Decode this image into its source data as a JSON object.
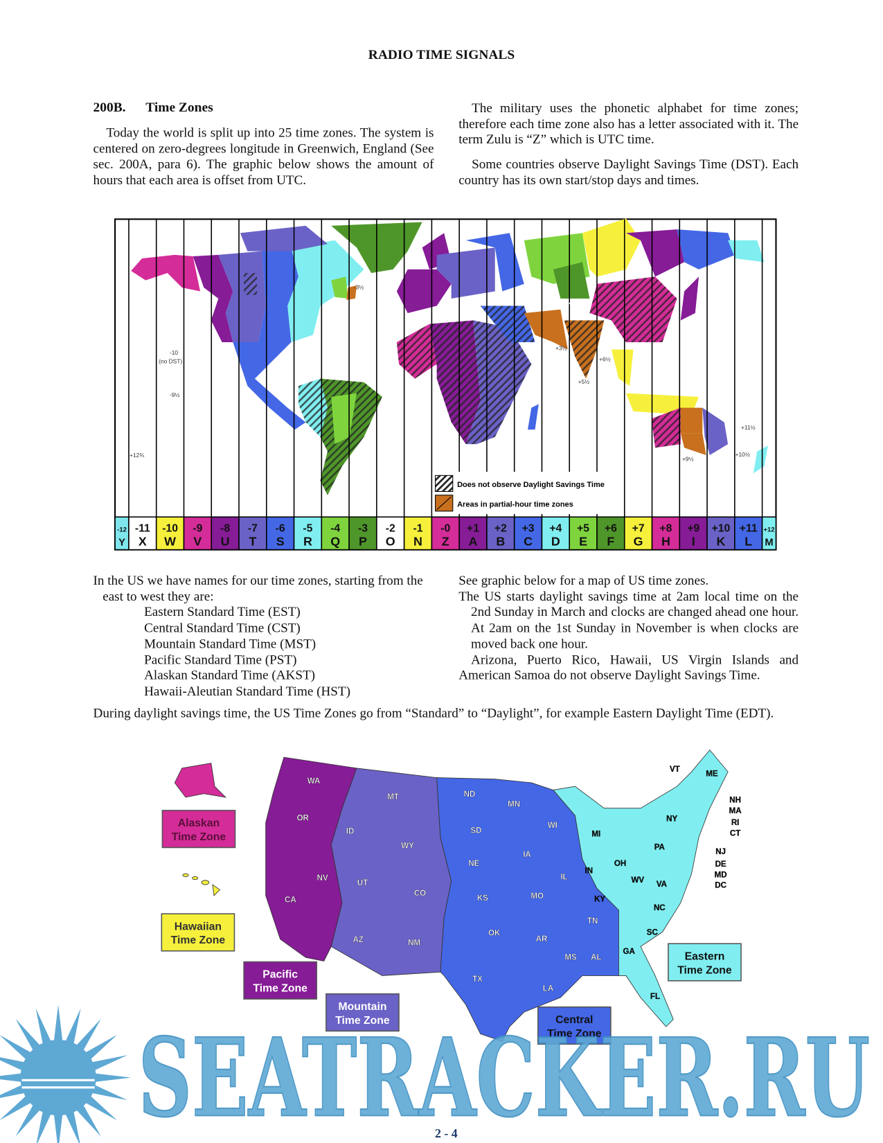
{
  "header": {
    "title": "RADIO TIME SIGNALS"
  },
  "section": {
    "number": "200B.",
    "title": "Time Zones"
  },
  "left_col_1": {
    "paragraph": "Today the world is split up into 25 time zones. The system is centered on zero-degrees longitude in Greenwich, England (See sec. 200A, para 6). The graphic below shows the amount of hours that each area is offset from UTC."
  },
  "right_col_1": {
    "paragraphs": [
      "The military uses the phonetic alphabet for time zones; therefore each time zone also has a letter associated with it. The term Zulu is “Z” which is UTC time.",
      "Some countries observe Daylight Savings Time (DST). Each country has its own start/stop days and times."
    ]
  },
  "world_map": {
    "legend": {
      "no_dst": "Does not observe Daylight Savings Time",
      "partial_hour": "Areas in partial-hour time zones"
    },
    "annotations": {
      "nfld": "-3½",
      "hawaii": "-10",
      "hawaii_note": "(no DST)",
      "marquesas": "-9½",
      "chatham": "+12¾",
      "afghanistan": "+4.5",
      "iran": "+3½",
      "myanmar": "+6½",
      "india": "+5½",
      "australia_central": "+9½",
      "norfolk": "+11½",
      "lord_howe": "+10½"
    },
    "zones": [
      {
        "offset": "-12",
        "letter": "Y",
        "color": "#7fe6ec"
      },
      {
        "offset": "-11",
        "letter": "X",
        "color": "#ffffff"
      },
      {
        "offset": "-10",
        "letter": "W",
        "color": "#f6f03c"
      },
      {
        "offset": "-9",
        "letter": "V",
        "color": "#d42c98"
      },
      {
        "offset": "-8",
        "letter": "U",
        "color": "#861c96"
      },
      {
        "offset": "-7",
        "letter": "T",
        "color": "#6a62c6"
      },
      {
        "offset": "-6",
        "letter": "S",
        "color": "#4467e6"
      },
      {
        "offset": "-5",
        "letter": "R",
        "color": "#80eef0"
      },
      {
        "offset": "-4",
        "letter": "Q",
        "color": "#7fd43e"
      },
      {
        "offset": "-3",
        "letter": "P",
        "color": "#4f962a"
      },
      {
        "offset": "-2",
        "letter": "O",
        "color": "#ffffff"
      },
      {
        "offset": "-1",
        "letter": "N",
        "color": "#f6f03c"
      },
      {
        "offset": "-0",
        "letter": "Z",
        "color": "#d42c98"
      },
      {
        "offset": "+1",
        "letter": "A",
        "color": "#861c96"
      },
      {
        "offset": "+2",
        "letter": "B",
        "color": "#6a62c6"
      },
      {
        "offset": "+3",
        "letter": "C",
        "color": "#4467e6"
      },
      {
        "offset": "+4",
        "letter": "D",
        "color": "#80eef0"
      },
      {
        "offset": "+5",
        "letter": "E",
        "color": "#7fd43e"
      },
      {
        "offset": "+6",
        "letter": "F",
        "color": "#4f962a"
      },
      {
        "offset": "+7",
        "letter": "G",
        "color": "#f6f03c"
      },
      {
        "offset": "+8",
        "letter": "H",
        "color": "#d42c98"
      },
      {
        "offset": "+9",
        "letter": "I",
        "color": "#861c96"
      },
      {
        "offset": "+10",
        "letter": "K",
        "color": "#6a62c6"
      },
      {
        "offset": "+11",
        "letter": "L",
        "color": "#4467e6"
      },
      {
        "offset": "+12",
        "letter": "M",
        "color": "#80eef0"
      }
    ]
  },
  "left_col_2": {
    "intro": "In the US we have names for our time zones, starting from the east to west they are:",
    "zones": [
      "Eastern Standard Time (EST)",
      "Central Standard Time (CST)",
      "Mountain Standard Time (MST)",
      "Pacific Standard Time (PST)",
      "Alaskan Standard Time (AKST)",
      "Hawaii-Aleutian Standard Time (HST)"
    ]
  },
  "right_col_2": {
    "line1": "See graphic below for a map of US time zones.",
    "dst_rule": "The US starts daylight savings time at 2am local time on the 2nd Sunday in March and clocks are changed ahead one hour. At 2am on the 1st Sunday in November is when clocks are moved back one hour.",
    "exceptions": "Arizona, Puerto Rico, Hawaii, US Virgin Islands and American Samoa do not observe Daylight Savings Time."
  },
  "full_width": {
    "paragraph": "During daylight savings time, the US Time Zones go from “Standard” to “Daylight”, for example Eastern Daylight Time (EDT)."
  },
  "us_map": {
    "colors": {
      "alaskan": "#d42c98",
      "hawaiian": "#f6f03c",
      "pacific": "#861c96",
      "mountain": "#6a62c6",
      "central": "#4467e6",
      "eastern": "#80eef0"
    },
    "zone_labels": {
      "alaskan": [
        "Alaskan",
        "Time Zone"
      ],
      "hawaiian": [
        "Hawaiian",
        "Time Zone"
      ],
      "pacific": [
        "Pacific",
        "Time Zone"
      ],
      "mountain": [
        "Mountain",
        "Time Zone"
      ],
      "central": [
        "Central",
        "Time Zone"
      ],
      "eastern": [
        "Eastern",
        "Time Zone"
      ]
    },
    "states": [
      "WA",
      "OR",
      "ID",
      "MT",
      "WY",
      "NV",
      "UT",
      "CO",
      "CA",
      "AZ",
      "NM",
      "ND",
      "SD",
      "NE",
      "KS",
      "OK",
      "TX",
      "MN",
      "IA",
      "MO",
      "AR",
      "LA",
      "MS",
      "AL",
      "TN",
      "KY",
      "IL",
      "WI",
      "MI",
      "IN",
      "OH",
      "WV",
      "VA",
      "NC",
      "SC",
      "GA",
      "FL",
      "PA",
      "NY",
      "VT",
      "ME",
      "NH",
      "MA",
      "RI",
      "CT",
      "NJ",
      "DE",
      "MD",
      "DC"
    ]
  },
  "watermark": {
    "text": "SEATRACKER.RU",
    "color": "#5ea8d4"
  },
  "footer": {
    "page_number": "2 - 4"
  }
}
